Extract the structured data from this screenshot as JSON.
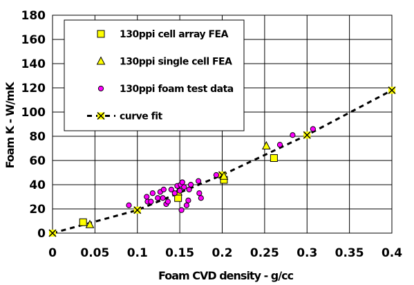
{
  "chart_data": {
    "type": "scatter",
    "xlabel": "Foam CVD density - g/cc",
    "ylabel": "Foam K - W/mK",
    "xlim": [
      0,
      0.4
    ],
    "ylim": [
      0,
      180
    ],
    "x_ticks": [
      "0",
      "0.05",
      "0.1",
      "0.15",
      "0.2",
      "0.25",
      "0.3",
      "0.35",
      "0.4"
    ],
    "y_ticks": [
      "0",
      "20",
      "40",
      "60",
      "80",
      "100",
      "120",
      "140",
      "160",
      "180"
    ],
    "grid": true,
    "legend_position": "top-left",
    "series": [
      {
        "name": "130ppi cell array FEA",
        "marker": "square",
        "color": "#ffff00",
        "points": [
          [
            0.036,
            9
          ],
          [
            0.148,
            29
          ],
          [
            0.202,
            44
          ],
          [
            0.261,
            62
          ]
        ]
      },
      {
        "name": "130ppi single cell FEA",
        "marker": "triangle",
        "color": "#ffff00",
        "points": [
          [
            0.044,
            7
          ],
          [
            0.148,
            34
          ],
          [
            0.202,
            47
          ],
          [
            0.252,
            72
          ]
        ]
      },
      {
        "name": "130ppi foam test data",
        "marker": "circle",
        "color": "#ff00ff",
        "points": [
          [
            0.09,
            23
          ],
          [
            0.111,
            30
          ],
          [
            0.112,
            26
          ],
          [
            0.116,
            26
          ],
          [
            0.118,
            33
          ],
          [
            0.124,
            29
          ],
          [
            0.127,
            34
          ],
          [
            0.13,
            29
          ],
          [
            0.131,
            36
          ],
          [
            0.134,
            24
          ],
          [
            0.136,
            26
          ],
          [
            0.14,
            36
          ],
          [
            0.144,
            33
          ],
          [
            0.147,
            39
          ],
          [
            0.15,
            35
          ],
          [
            0.151,
            40
          ],
          [
            0.152,
            19
          ],
          [
            0.153,
            42
          ],
          [
            0.155,
            38
          ],
          [
            0.158,
            23
          ],
          [
            0.16,
            27
          ],
          [
            0.161,
            36
          ],
          [
            0.163,
            40
          ],
          [
            0.172,
            43
          ],
          [
            0.173,
            33
          ],
          [
            0.175,
            29
          ],
          [
            0.193,
            48
          ],
          [
            0.268,
            73
          ],
          [
            0.283,
            81
          ],
          [
            0.307,
            86
          ]
        ]
      },
      {
        "name": "curve fit",
        "marker": "x",
        "line": "dashed",
        "color": "#ffff00",
        "points": [
          [
            0,
            0
          ],
          [
            0.1,
            19
          ],
          [
            0.2,
            48
          ],
          [
            0.3,
            81
          ],
          [
            0.4,
            118
          ]
        ]
      }
    ]
  }
}
